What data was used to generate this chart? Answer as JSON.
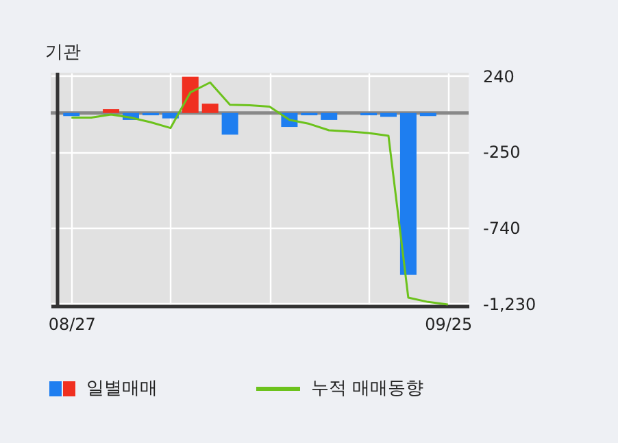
{
  "chart_data": {
    "type": "bar",
    "title": "기관",
    "categories": [
      "08/27",
      null,
      null,
      null,
      null,
      null,
      null,
      null,
      null,
      null,
      null,
      null,
      null,
      null,
      null,
      null,
      null,
      null,
      null,
      "09/25"
    ],
    "series": [
      {
        "name": "일별매매",
        "colors": [
          "#1e7ef0",
          "#1e7ef0",
          "#f03020",
          "#1e7ef0",
          "#1e7ef0",
          "#1e7ef0",
          "#f03020",
          "#f03020",
          "#1e7ef0",
          "#1e7ef0",
          "#1e7ef0",
          "#1e7ef0",
          "#1e7ef0",
          "#1e7ef0",
          "#1e7ef0",
          "#1e7ef0",
          "#1e7ef0",
          "#1e7ef0",
          "#1e7ef0",
          "#1e7ef0"
        ],
        "values": [
          -20,
          0,
          25,
          -45,
          -15,
          -35,
          235,
          60,
          -140,
          0,
          0,
          -90,
          -15,
          -45,
          0,
          -15,
          -25,
          -1045,
          -20,
          0
        ]
      },
      {
        "name": "누적 매매동향",
        "type": "line",
        "color": "#6cc21c",
        "values": [
          -30,
          -30,
          -10,
          -30,
          -60,
          -97,
          132,
          197,
          53,
          50,
          41,
          -44,
          -70,
          -112,
          -120,
          -130,
          -147,
          -1192,
          -1220,
          -1236
        ]
      }
    ],
    "ylim": [
      -1245,
      260
    ],
    "yticks": [
      240,
      -250,
      -740,
      {
        "value": -1230,
        "label": "-1,230"
      }
    ],
    "ref_lines": [
      {
        "axis": "y",
        "value": 0,
        "color": "#888888"
      }
    ],
    "grid": true,
    "legend": "bottom"
  }
}
